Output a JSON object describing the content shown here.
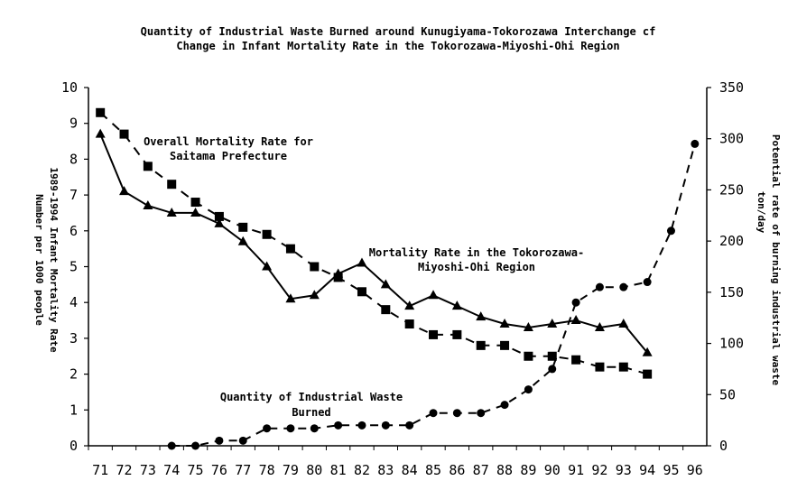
{
  "chart_data": {
    "type": "line",
    "title": [
      "Quantity of Industrial Waste Burned around Kunugiyama-Tokorozawa Interchange cf",
      "Change in Infant Mortality Rate in the Tokorozawa-Miyoshi-Ohi Region"
    ],
    "categories": [
      "71",
      "72",
      "73",
      "74",
      "75",
      "76",
      "77",
      "78",
      "79",
      "80",
      "81",
      "82",
      "83",
      "84",
      "85",
      "86",
      "87",
      "88",
      "89",
      "90",
      "91",
      "92",
      "93",
      "94",
      "95",
      "96"
    ],
    "ylabel_left": [
      "1989-1994 Infant Mortality Rate",
      "Number per 1000 people"
    ],
    "ylabel_right": [
      "Potential rate of burning industrial waste",
      "ton/day"
    ],
    "ylim_left": [
      0,
      10
    ],
    "ylim_right": [
      0,
      350
    ],
    "yticks_left": [
      "0",
      "1",
      "2",
      "3",
      "4",
      "5",
      "6",
      "7",
      "8",
      "9",
      "10"
    ],
    "yticks_right": [
      "0",
      "50",
      "100",
      "150",
      "200",
      "250",
      "300",
      "350"
    ],
    "grid": false,
    "series": [
      {
        "name": [
          "Overall Mortality Rate for",
          "Saitama Prefecture"
        ],
        "axis": "left",
        "marker": "square",
        "line": "dashed",
        "values": [
          9.3,
          8.7,
          7.8,
          7.3,
          6.8,
          6.4,
          6.1,
          5.9,
          5.5,
          5.0,
          4.7,
          4.3,
          3.8,
          3.4,
          3.1,
          3.1,
          2.8,
          2.8,
          2.5,
          2.5,
          2.4,
          2.2,
          2.2,
          2.0,
          null,
          null
        ]
      },
      {
        "name": [
          "Mortality Rate in the Tokorozawa-",
          "Miyoshi-Ohi Region"
        ],
        "axis": "left",
        "marker": "triangle",
        "line": "solid",
        "values": [
          8.7,
          7.1,
          6.7,
          6.5,
          6.5,
          6.2,
          5.7,
          5.0,
          4.1,
          4.2,
          4.8,
          5.1,
          4.5,
          3.9,
          4.2,
          3.9,
          3.6,
          3.4,
          3.3,
          3.4,
          3.5,
          3.3,
          3.4,
          2.6,
          null,
          null
        ]
      },
      {
        "name": [
          "Quantity of Industrial Waste",
          "Burned"
        ],
        "axis": "right",
        "marker": "circle",
        "line": "dashed",
        "values": [
          null,
          null,
          null,
          0,
          0,
          5,
          5,
          17,
          17,
          17,
          20,
          20,
          20,
          20,
          32,
          32,
          32,
          40,
          55,
          75,
          140,
          155,
          155,
          160,
          210,
          295
        ]
      }
    ]
  }
}
